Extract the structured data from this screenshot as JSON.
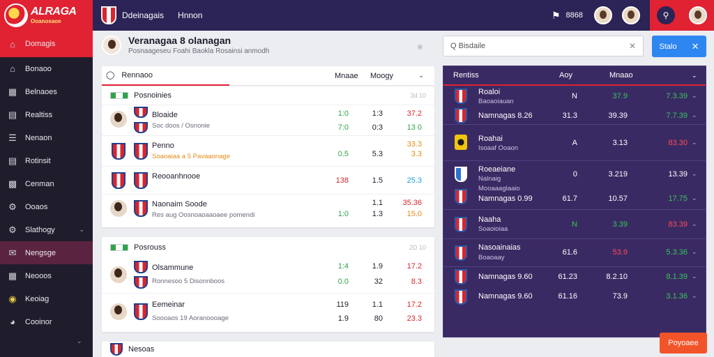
{
  "brand": {
    "name": "ALRAGA",
    "sub": "Ooanosaoe"
  },
  "topbar": {
    "title": "Ddeinagais",
    "link": "Hnnon",
    "count": "8868",
    "icons": [
      "bell-icon",
      "avatar",
      "search-icon"
    ]
  },
  "sidebar": {
    "items": [
      {
        "label": "Domagis",
        "icon": "home-icon"
      },
      {
        "label": "Bonaoo",
        "icon": "building-icon"
      },
      {
        "label": "Belnaoes",
        "icon": "chart-icon"
      },
      {
        "label": "Realtiss",
        "icon": "layers-icon"
      },
      {
        "label": "Nenaon",
        "icon": "list-icon"
      },
      {
        "label": "Rotinsit",
        "icon": "file-icon"
      },
      {
        "label": "Cenman",
        "icon": "card-icon"
      },
      {
        "label": "Ooaos",
        "icon": "gear-icon"
      },
      {
        "label": "Slathogy",
        "icon": "puzzle-icon"
      },
      {
        "label": "Nengsge",
        "icon": "mail-icon"
      },
      {
        "label": "Neooos",
        "icon": "calendar-icon"
      },
      {
        "label": "Keoiag",
        "icon": "ticket-icon"
      },
      {
        "label": "Cooinor",
        "icon": "globe-icon"
      }
    ]
  },
  "profile": {
    "name": "Veranagaa 8 olanagan",
    "sub": "Posnaageseu Foahi Baokla Rosainsi anmodh"
  },
  "search": {
    "value": "Q Bisdaile"
  },
  "primary_button": {
    "label": "Stalo"
  },
  "list": {
    "tab": "Rennaoo",
    "col1": "Mnaae",
    "col2": "Moogy",
    "groups": [
      {
        "title": "Posnoinies",
        "badge": "3d 10",
        "matches": [
          {
            "name": "Bloaide",
            "sub": "Soc doos / Osnonie",
            "v1": "1:0",
            "v2": "1:3",
            "v3": "37.2",
            "v4": "7:0",
            "v5": "0:3",
            "v6": "13 0"
          },
          {
            "name": "Penno",
            "sub": "Soaoaiaa a 5 Pavaaonage",
            "v1": "0.5",
            "v2": "5.3",
            "v3": "33.3",
            "v3b": "3.3"
          },
          {
            "name": "Reooanhnooe",
            "sub": "",
            "v1": "138",
            "v2": "1.5",
            "v3": "25.3"
          },
          {
            "name": "Naonaim Soode",
            "sub": "Res aug Oosnoaoaaoaee pomendi",
            "v1": "1:0",
            "v2": "1.3",
            "v3": "35.36",
            "v3b": "15.0",
            "v2a": "1.1"
          }
        ]
      },
      {
        "title": "Posrouss",
        "badge": "2D 10",
        "matches": [
          {
            "name": "Olsammune",
            "sub": "Ronnesoo 5 Disonnboos",
            "v1": "1:4",
            "v2": "1.9",
            "v3": "17.2",
            "v4": "0.0",
            "v5": "32",
            "v6": "8.3"
          },
          {
            "name": "Eemeinar",
            "sub": "Soooaos 19 Aoranoooage",
            "v1": "119",
            "v2": "1.1",
            "v3": "17.2",
            "v4": "1.9",
            "v5": "80",
            "v6": "23.3"
          }
        ]
      }
    ],
    "footer_title": "Nesoas"
  },
  "rpanel": {
    "head": {
      "c1": "Rentiss",
      "c2": "Aoy",
      "c3": "Mnaao"
    },
    "rows": [
      {
        "name": "Roaloi",
        "sub": "Baoaoiauan",
        "v1": "N",
        "v2": "37.9",
        "v3": "7.3.39",
        "crest": "red"
      },
      {
        "name": "Namnagas 8.26",
        "sub": "",
        "v1": "31.3",
        "v2": "39.39",
        "v3": "7.7.39",
        "crest": "red"
      },
      {
        "name": "Roahai",
        "sub": "Isoaaf Ooaon",
        "v1": "A",
        "v2": "3.13",
        "v3": "83.30",
        "crest": "yellow"
      },
      {
        "name": "Roeaeiane",
        "sub": "Nalnaig",
        "v1": "0",
        "v2": "3.219",
        "v3": "13.39",
        "crest": "blue"
      },
      {
        "name": "Namnagas 0.99",
        "sub": "Mooaaaglaaio",
        "v1": "61.7",
        "v2": "10.57",
        "v3": "17.75",
        "crest": "red"
      },
      {
        "name": "Naaha",
        "sub": "Soaoioiaa",
        "v1": "N",
        "v2": "3.39",
        "v3": "83.39",
        "crest": "red"
      },
      {
        "name": "Nasoainaias",
        "sub": "Boaoaay",
        "v1": "61.6",
        "v2": "53.9",
        "v3": "5.3.36",
        "crest": "red"
      },
      {
        "name": "Namnagas 9.60",
        "sub": "",
        "v1": "61.23",
        "v2": "8.2.10",
        "v3": "8.1.39",
        "crest": "red"
      },
      {
        "name": "Namnagas 9.60",
        "sub": "",
        "v1": "61.16",
        "v2": "73.9",
        "v3": "3.1.36",
        "crest": "red"
      }
    ]
  },
  "fab": {
    "label": "Poyoaee"
  }
}
